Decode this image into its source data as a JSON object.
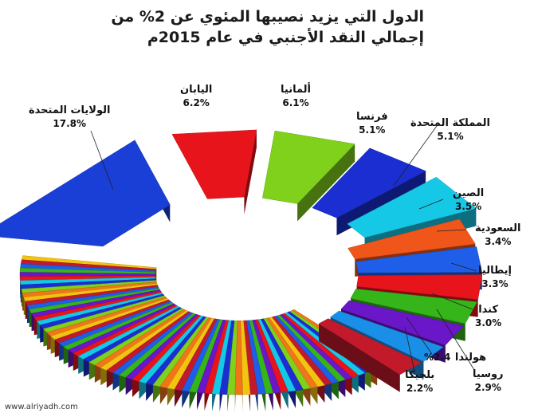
{
  "title": {
    "line1": "الدول التي يزيد نصيبها المئوي عن 2% من",
    "line2": "إجمالي النقد الأجنبي في عام 2015م"
  },
  "watermark": "www.alriyadh.com",
  "chart_data": {
    "type": "pie",
    "title": "الدول التي يزيد نصيبها المئوي عن 2% من إجمالي النقد الأجنبي في عام 2015م",
    "unit": "%",
    "slices": [
      {
        "label": "اليابان",
        "value_text": "6.2%",
        "value": 6.2,
        "color": "#e8141c"
      },
      {
        "label": "ألمانيا",
        "value_text": "6.1%",
        "value": 6.1,
        "color": "#7fd11b"
      },
      {
        "label": "فرنسا",
        "value_text": "5.1%",
        "value": 5.1,
        "color": "#1a2ed1"
      },
      {
        "label": "المملكة المتحدة",
        "value_text": "5.1%",
        "value": 5.1,
        "color": "#15c8e6"
      },
      {
        "label": "الصين",
        "value_text": "3.5%",
        "value": 3.5,
        "color": "#f0561a"
      },
      {
        "label": "السعودية",
        "value_text": "3.4%",
        "value": 3.4,
        "color": "#1e5ee8"
      },
      {
        "label": "إيطاليا",
        "value_text": "3.3%",
        "value": 3.3,
        "color": "#e8141c"
      },
      {
        "label": "كندا",
        "value_text": "3.0%",
        "value": 3.0,
        "color": "#36b51a"
      },
      {
        "label": "روسيا",
        "value_text": "2.9%",
        "value": 2.9,
        "color": "#6a16c9"
      },
      {
        "label": "هولندا",
        "value_text": "2.4%",
        "value": 2.4,
        "color": "#1a8fe8"
      },
      {
        "label": "بلجيكا",
        "value_text": "2.2%",
        "value": 2.2,
        "color": "#c21a2a"
      },
      {
        "label": "الولايات المتحدة",
        "value_text": "17.8%",
        "value": 17.8,
        "color": "#1a3fd6"
      }
    ],
    "unlabeled_slice_colors": [
      "#f0761a",
      "#7fd11b",
      "#1a2ed1",
      "#15c8e6",
      "#e8141c",
      "#6a16c9",
      "#36b51a",
      "#1e5ee8",
      "#c21a2a",
      "#f2c40f"
    ]
  }
}
